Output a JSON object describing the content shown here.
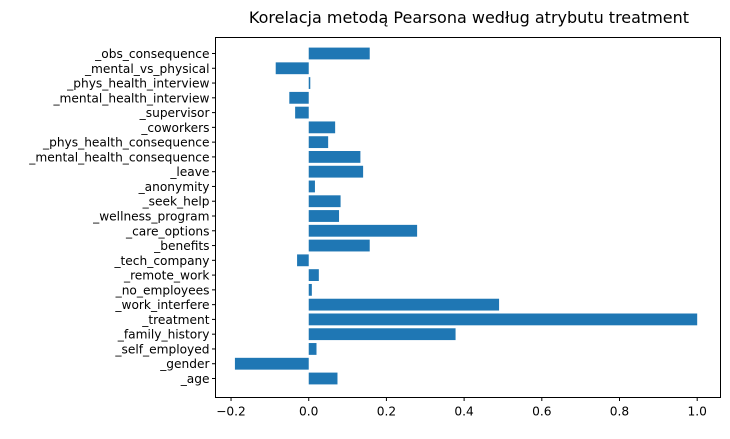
{
  "chart_data": {
    "type": "bar",
    "orientation": "horizontal",
    "title": "Korelacja metodą Pearsona według atrybutu treatment",
    "xlabel": "",
    "ylabel": "",
    "xlim": [
      -0.24,
      1.06
    ],
    "x_ticks": [
      -0.2,
      0.0,
      0.2,
      0.4,
      0.6,
      0.8,
      1.0
    ],
    "x_tick_labels": [
      "−0.2",
      "0.0",
      "0.2",
      "0.4",
      "0.6",
      "0.8",
      "1.0"
    ],
    "grid": false,
    "bar_color": "#1f77b4",
    "categories": [
      "_age",
      "_gender",
      "_self_employed",
      "_family_history",
      "_treatment",
      "_work_interfere",
      "_no_employees",
      "_remote_work",
      "_tech_company",
      "_benefits",
      "_care_options",
      "_wellness_program",
      "_seek_help",
      "_anonymity",
      "_leave",
      "_mental_health_consequence",
      "_phys_health_consequence",
      "_coworkers",
      "_supervisor",
      "_mental_health_interview",
      "_phys_health_interview",
      "_mental_vs_physical",
      "_obs_consequence"
    ],
    "values": [
      0.074,
      -0.19,
      0.02,
      0.378,
      1.0,
      0.49,
      0.008,
      0.026,
      -0.03,
      0.157,
      0.279,
      0.078,
      0.082,
      0.016,
      0.14,
      0.133,
      0.05,
      0.068,
      -0.035,
      -0.05,
      0.004,
      -0.085,
      0.157
    ]
  }
}
